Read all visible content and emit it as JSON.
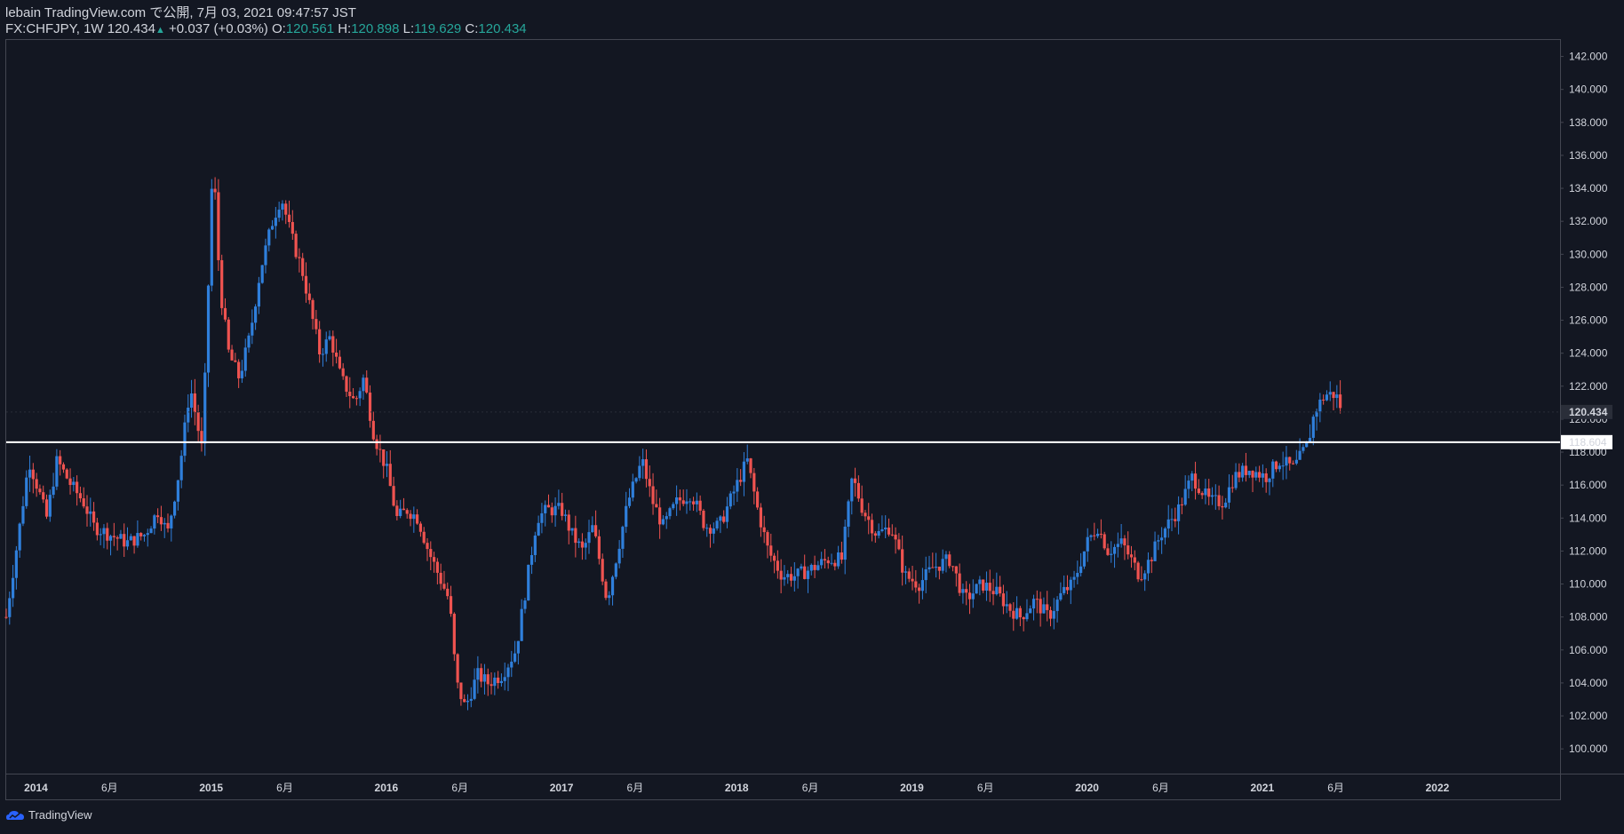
{
  "header": {
    "publish_line": "lebain TradingView.com で公開, 7月 03, 2021 09:47:57 JST",
    "symbol": "FX:CHFJPY, 1W",
    "last": "120.434",
    "change": "+0.037 (+0.03%)",
    "o_label": "O:",
    "o_val": "120.561",
    "h_label": "H:",
    "h_val": "120.898",
    "l_label": "L:",
    "l_val": "119.629",
    "c_label": "C:",
    "c_val": "120.434"
  },
  "footer": {
    "brand": "TradingView"
  },
  "colors": {
    "background": "#131722",
    "up": "#2f7fdb",
    "down": "#ef5350",
    "hline": "#ffffff",
    "text": "#d1d4dc"
  },
  "chart_data": {
    "type": "candlestick",
    "symbol": "FX:CHFJPY",
    "interval": "1W",
    "ylim": [
      98.5,
      143.0
    ],
    "y_ticks": [
      "100.000",
      "102.000",
      "104.000",
      "106.000",
      "108.000",
      "110.000",
      "112.000",
      "114.000",
      "116.000",
      "118.000",
      "120.000",
      "122.000",
      "124.000",
      "126.000",
      "128.000",
      "130.000",
      "132.000",
      "134.000",
      "136.000",
      "138.000",
      "140.000",
      "142.000"
    ],
    "x_ticks": [
      {
        "label": "2014",
        "t": 2014.0
      },
      {
        "label": "6月",
        "t": 2014.42
      },
      {
        "label": "2015",
        "t": 2015.0
      },
      {
        "label": "6月",
        "t": 2015.42
      },
      {
        "label": "2016",
        "t": 2016.0
      },
      {
        "label": "6月",
        "t": 2016.42
      },
      {
        "label": "2017",
        "t": 2017.0
      },
      {
        "label": "6月",
        "t": 2017.42
      },
      {
        "label": "2018",
        "t": 2018.0
      },
      {
        "label": "6月",
        "t": 2018.42
      },
      {
        "label": "2019",
        "t": 2019.0
      },
      {
        "label": "6月",
        "t": 2019.42
      },
      {
        "label": "2020",
        "t": 2020.0
      },
      {
        "label": "6月",
        "t": 2020.42
      },
      {
        "label": "2021",
        "t": 2021.0
      },
      {
        "label": "6月",
        "t": 2021.42
      },
      {
        "label": "2022",
        "t": 2022.0
      }
    ],
    "xlim": [
      2013.83,
      2022.7
    ],
    "horizontal_line": {
      "value": 118.604,
      "label": "118.604"
    },
    "last_price": {
      "value": 120.434,
      "label": "120.434"
    },
    "path_points": [
      [
        2013.83,
        108.0
      ],
      [
        2013.9,
        113.0
      ],
      [
        2013.96,
        117.5
      ],
      [
        2014.02,
        115.5
      ],
      [
        2014.06,
        114.0
      ],
      [
        2014.12,
        117.5
      ],
      [
        2014.2,
        116.0
      ],
      [
        2014.27,
        115.0
      ],
      [
        2014.33,
        113.5
      ],
      [
        2014.42,
        113.0
      ],
      [
        2014.52,
        112.5
      ],
      [
        2014.62,
        113.0
      ],
      [
        2014.7,
        114.5
      ],
      [
        2014.75,
        113.0
      ],
      [
        2014.82,
        117.0
      ],
      [
        2014.88,
        122.0
      ],
      [
        2014.95,
        118.0
      ],
      [
        2015.01,
        136.0
      ],
      [
        2015.05,
        128.0
      ],
      [
        2015.1,
        124.0
      ],
      [
        2015.16,
        122.5
      ],
      [
        2015.22,
        125.0
      ],
      [
        2015.28,
        129.0
      ],
      [
        2015.35,
        132.0
      ],
      [
        2015.4,
        133.5
      ],
      [
        2015.46,
        131.0
      ],
      [
        2015.52,
        129.0
      ],
      [
        2015.58,
        126.0
      ],
      [
        2015.62,
        124.0
      ],
      [
        2015.68,
        125.0
      ],
      [
        2015.74,
        122.5
      ],
      [
        2015.82,
        121.0
      ],
      [
        2015.87,
        122.5
      ],
      [
        2015.93,
        119.0
      ],
      [
        2016.0,
        117.0
      ],
      [
        2016.06,
        114.0
      ],
      [
        2016.12,
        114.5
      ],
      [
        2016.18,
        114.0
      ],
      [
        2016.24,
        112.0
      ],
      [
        2016.3,
        110.5
      ],
      [
        2016.36,
        109.0
      ],
      [
        2016.4,
        104.0
      ],
      [
        2016.45,
        102.5
      ],
      [
        2016.52,
        104.5
      ],
      [
        2016.58,
        104.0
      ],
      [
        2016.66,
        104.5
      ],
      [
        2016.74,
        106.0
      ],
      [
        2016.8,
        110.0
      ],
      [
        2016.86,
        114.0
      ],
      [
        2016.92,
        114.5
      ],
      [
        2017.0,
        114.5
      ],
      [
        2017.06,
        113.0
      ],
      [
        2017.12,
        112.0
      ],
      [
        2017.18,
        113.5
      ],
      [
        2017.26,
        109.0
      ],
      [
        2017.32,
        112.0
      ],
      [
        2017.38,
        115.0
      ],
      [
        2017.46,
        117.5
      ],
      [
        2017.52,
        115.0
      ],
      [
        2017.58,
        113.5
      ],
      [
        2017.66,
        115.0
      ],
      [
        2017.74,
        115.5
      ],
      [
        2017.82,
        113.5
      ],
      [
        2017.9,
        113.5
      ],
      [
        2017.96,
        115.0
      ],
      [
        2018.06,
        117.5
      ],
      [
        2018.12,
        114.5
      ],
      [
        2018.18,
        112.0
      ],
      [
        2018.26,
        110.5
      ],
      [
        2018.34,
        110.5
      ],
      [
        2018.44,
        111.0
      ],
      [
        2018.52,
        111.5
      ],
      [
        2018.6,
        111.5
      ],
      [
        2018.66,
        116.5
      ],
      [
        2018.72,
        114.5
      ],
      [
        2018.8,
        113.0
      ],
      [
        2018.88,
        113.5
      ],
      [
        2018.96,
        110.5
      ],
      [
        2019.04,
        110.0
      ],
      [
        2019.12,
        111.0
      ],
      [
        2019.22,
        111.5
      ],
      [
        2019.3,
        109.0
      ],
      [
        2019.4,
        110.0
      ],
      [
        2019.48,
        109.5
      ],
      [
        2019.56,
        108.5
      ],
      [
        2019.62,
        108.0
      ],
      [
        2019.7,
        109.0
      ],
      [
        2019.78,
        108.0
      ],
      [
        2019.86,
        109.5
      ],
      [
        2019.92,
        110.0
      ],
      [
        2020.0,
        112.5
      ],
      [
        2020.06,
        113.5
      ],
      [
        2020.12,
        112.0
      ],
      [
        2020.2,
        112.5
      ],
      [
        2020.3,
        110.5
      ],
      [
        2020.36,
        111.5
      ],
      [
        2020.42,
        113.0
      ],
      [
        2020.52,
        114.5
      ],
      [
        2020.6,
        116.5
      ],
      [
        2020.7,
        115.0
      ],
      [
        2020.78,
        115.0
      ],
      [
        2020.84,
        116.5
      ],
      [
        2020.92,
        117.0
      ],
      [
        2021.02,
        116.5
      ],
      [
        2021.1,
        117.5
      ],
      [
        2021.18,
        117.0
      ],
      [
        2021.26,
        118.5
      ],
      [
        2021.3,
        120.5
      ],
      [
        2021.36,
        121.5
      ],
      [
        2021.42,
        121.5
      ],
      [
        2021.46,
        120.4
      ]
    ]
  }
}
